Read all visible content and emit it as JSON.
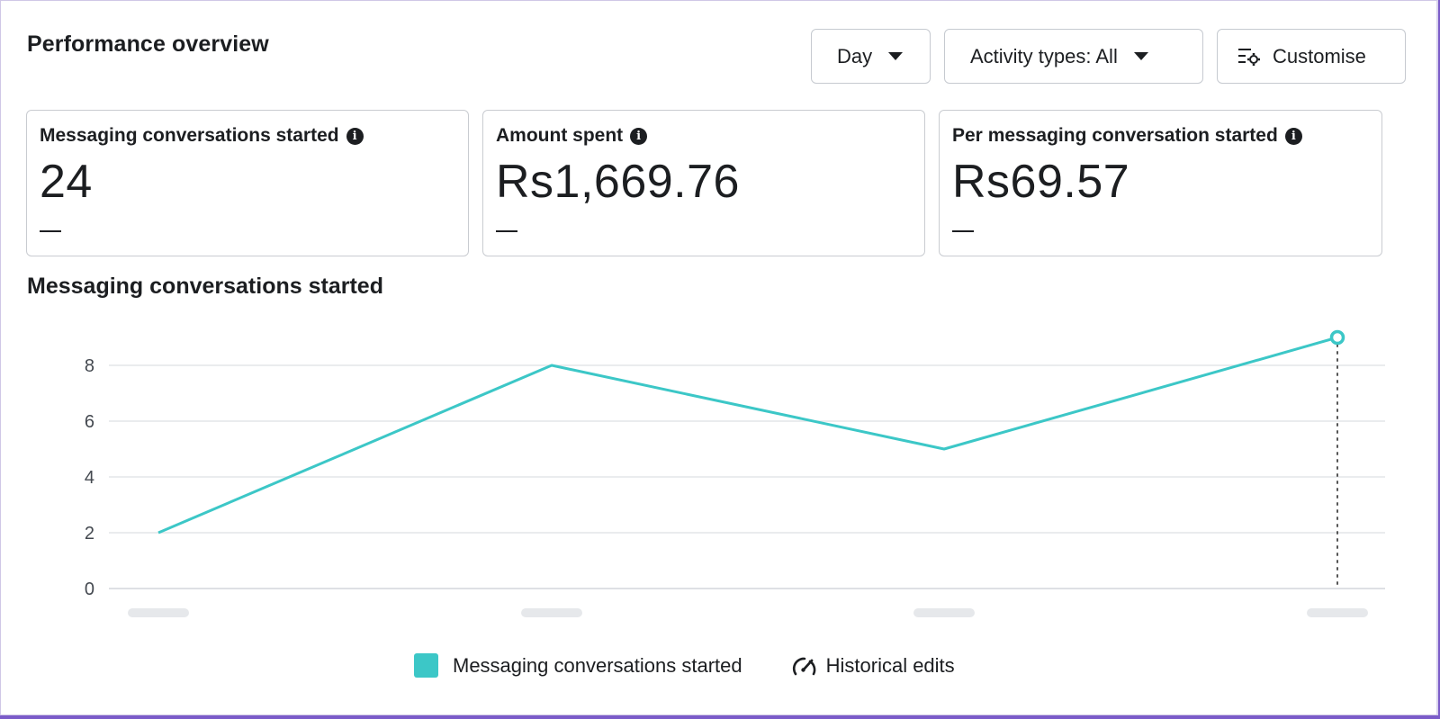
{
  "header": {
    "title": "Performance overview",
    "day_label": "Day",
    "activity_label": "Activity types: All",
    "customise_label": "Customise"
  },
  "cards": [
    {
      "label": "Messaging conversations started",
      "value": "24",
      "change": "—"
    },
    {
      "label": "Amount spent",
      "value": "Rs1,669.76",
      "change": "—"
    },
    {
      "label": "Per messaging conversation started",
      "value": "Rs69.57",
      "change": "—"
    }
  ],
  "chart_title": "Messaging conversations started",
  "chart_data": {
    "type": "line",
    "title": "Messaging conversations started",
    "x": [
      "",
      "",
      "",
      ""
    ],
    "series": [
      {
        "name": "Messaging conversations started",
        "values": [
          2,
          8,
          5,
          9
        ]
      }
    ],
    "yticks": [
      0,
      2,
      4,
      6,
      8
    ],
    "ylim": [
      0,
      9
    ],
    "grid": true,
    "legend": "bottom-center",
    "color": "#3cc7c7"
  },
  "legend": {
    "series_label": "Messaging conversations started",
    "edits_label": "Historical edits"
  },
  "colors": {
    "accent": "#3cc7c7",
    "frame": "#7b5cc9"
  }
}
